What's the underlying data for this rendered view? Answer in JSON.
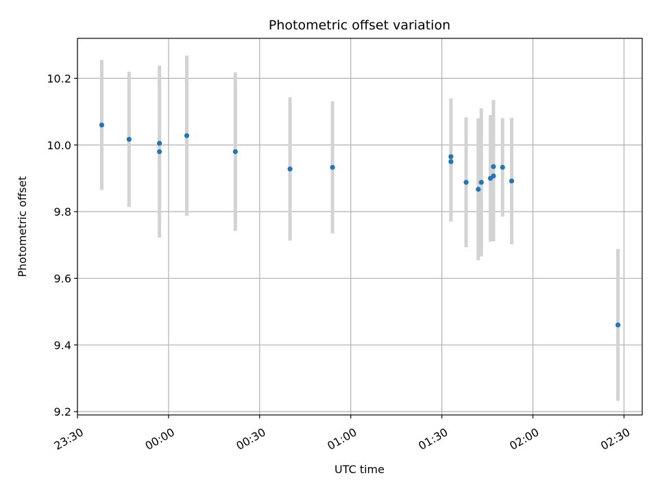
{
  "chart_data": {
    "type": "scatter",
    "title": "Photometric offset variation",
    "xlabel": "UTC time",
    "ylabel": "Photometric offset",
    "x_axis": "time",
    "xlim": [
      "23:30",
      "02:36"
    ],
    "ylim": [
      9.19,
      10.32
    ],
    "x_ticks": [
      "23:30",
      "00:00",
      "00:30",
      "01:00",
      "01:30",
      "02:00",
      "02:30"
    ],
    "y_ticks": [
      9.2,
      9.4,
      9.6,
      9.8,
      10.0,
      10.2
    ],
    "y_tick_labels": [
      "9.2",
      "9.4",
      "9.6",
      "9.8",
      "10.0",
      "10.2"
    ],
    "grid": true,
    "marker_color": "#1f77b4",
    "errorbar_color": "#d3d3d3",
    "points": [
      {
        "t": "23:38",
        "y": 10.06,
        "err": 0.195
      },
      {
        "t": "23:47",
        "y": 10.017,
        "err": 0.203
      },
      {
        "t": "23:57",
        "y": 9.98,
        "err": 0.258
      },
      {
        "t": "23:57",
        "y": 10.005,
        "err": 0.232
      },
      {
        "t": "00:06",
        "y": 10.028,
        "err": 0.24
      },
      {
        "t": "00:22",
        "y": 9.98,
        "err": 0.238
      },
      {
        "t": "00:40",
        "y": 9.928,
        "err": 0.215
      },
      {
        "t": "00:54",
        "y": 9.933,
        "err": 0.198
      },
      {
        "t": "01:33",
        "y": 9.95,
        "err": 0.18
      },
      {
        "t": "01:33",
        "y": 9.965,
        "err": 0.175
      },
      {
        "t": "01:38",
        "y": 9.888,
        "err": 0.195
      },
      {
        "t": "01:42",
        "y": 9.867,
        "err": 0.213
      },
      {
        "t": "01:43",
        "y": 9.888,
        "err": 0.222
      },
      {
        "t": "01:46",
        "y": 9.9,
        "err": 0.19
      },
      {
        "t": "01:47",
        "y": 9.907,
        "err": 0.196
      },
      {
        "t": "01:47",
        "y": 9.935,
        "err": 0.2
      },
      {
        "t": "01:50",
        "y": 9.933,
        "err": 0.148
      },
      {
        "t": "01:53",
        "y": 9.892,
        "err": 0.19
      },
      {
        "t": "02:28",
        "y": 9.46,
        "err": 0.228
      }
    ]
  }
}
